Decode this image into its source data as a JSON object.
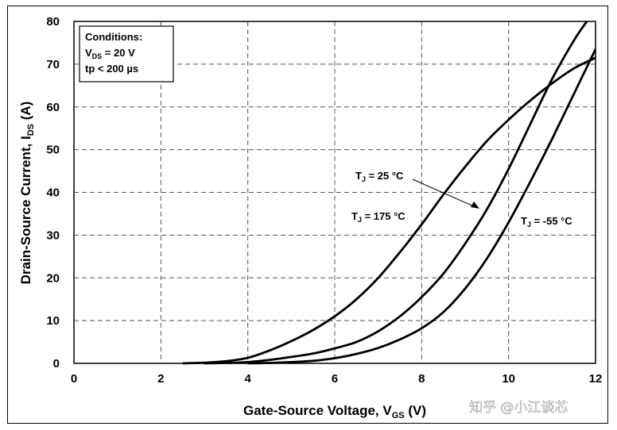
{
  "chart_data": {
    "type": "line",
    "xlabel": {
      "main": "Gate-Source Voltage, V",
      "sub": "GS",
      "unit": " (V)"
    },
    "ylabel": {
      "main": "Drain-Source Current, I",
      "sub": "DS",
      "unit": " (A)"
    },
    "xlim": [
      0,
      12
    ],
    "ylim": [
      0,
      80
    ],
    "xticks": [
      0,
      2,
      4,
      6,
      8,
      10,
      12
    ],
    "yticks": [
      0,
      10,
      20,
      30,
      40,
      50,
      60,
      70,
      80
    ],
    "grid": true,
    "series": [
      {
        "name": "TJ = 175 °C",
        "label": {
          "pre": "T",
          "sub": "J",
          "post": " = 175 °C"
        },
        "x": [
          2.5,
          3,
          3.5,
          4,
          4.5,
          5,
          5.5,
          6,
          6.5,
          7,
          7.5,
          8,
          8.5,
          9,
          9.5,
          10,
          10.5,
          11,
          11.5,
          12
        ],
        "y": [
          0,
          0.15,
          0.5,
          1.3,
          3,
          5.2,
          7.8,
          11,
          15,
          20,
          26,
          32.5,
          39.5,
          46,
          52,
          57,
          61.5,
          65.5,
          69,
          71.5
        ]
      },
      {
        "name": "TJ = 25 °C",
        "label": {
          "pre": "T",
          "sub": "J",
          "post": " = 25 °C"
        },
        "x": [
          3,
          3.5,
          4,
          4.5,
          5,
          5.5,
          6,
          6.5,
          7,
          7.5,
          8,
          8.5,
          9,
          9.5,
          10,
          10.5,
          11,
          11.5,
          11.8
        ],
        "y": [
          0,
          0.1,
          0.3,
          0.8,
          1.5,
          2.3,
          3.5,
          5,
          7.5,
          11,
          15.5,
          21,
          28,
          36,
          45.5,
          56,
          66.5,
          75.5,
          80
        ]
      },
      {
        "name": "TJ = -55 °C",
        "label": {
          "pre": "T",
          "sub": "J",
          "post": " = -55 °C"
        },
        "x": [
          4,
          4.5,
          5,
          5.5,
          6,
          6.5,
          7,
          7.5,
          8,
          8.5,
          9,
          9.5,
          10,
          10.5,
          11,
          11.5,
          12
        ],
        "y": [
          0,
          0.1,
          0.3,
          0.6,
          1.2,
          2.2,
          3.6,
          5.6,
          8.2,
          12,
          17.5,
          24.5,
          33,
          42.5,
          52.5,
          63,
          73.5
        ]
      }
    ],
    "annotations": {
      "conditions_title": "Conditions:",
      "conditions_vds": {
        "pre": "V",
        "sub": "DS",
        "post": " = 20 V"
      },
      "conditions_tp": "tp < 200 µs"
    }
  },
  "watermark": "知乎 @小江谈芯"
}
